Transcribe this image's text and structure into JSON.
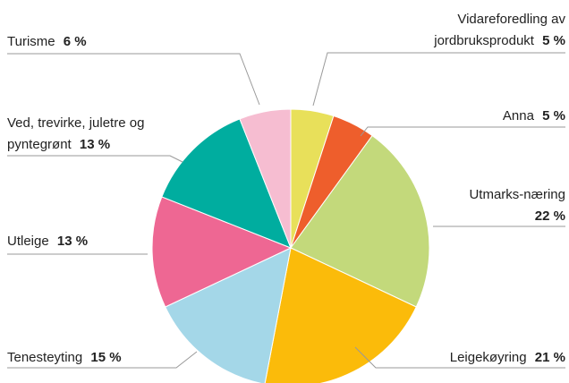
{
  "chart_data": {
    "type": "pie",
    "categories": [
      "Vidareforedling av jordbruksprodukt",
      "Anna",
      "Utmarks-næring",
      "Leigekøyring",
      "Tenesteyting",
      "Utleige",
      "Ved, trevirke, juletre og pyntegrønt",
      "Turisme"
    ],
    "values": [
      5,
      5,
      22,
      21,
      15,
      13,
      13,
      6
    ],
    "value_labels": [
      "5 %",
      "5 %",
      "22 %",
      "21 %",
      "15 %",
      "13 %",
      "13 %",
      "6 %"
    ],
    "colors": [
      "#e8e05a",
      "#ee5e2c",
      "#c3d97b",
      "#fbbb0a",
      "#a4d7e8",
      "#ee6793",
      "#00ad9f",
      "#f6bdd1"
    ]
  }
}
